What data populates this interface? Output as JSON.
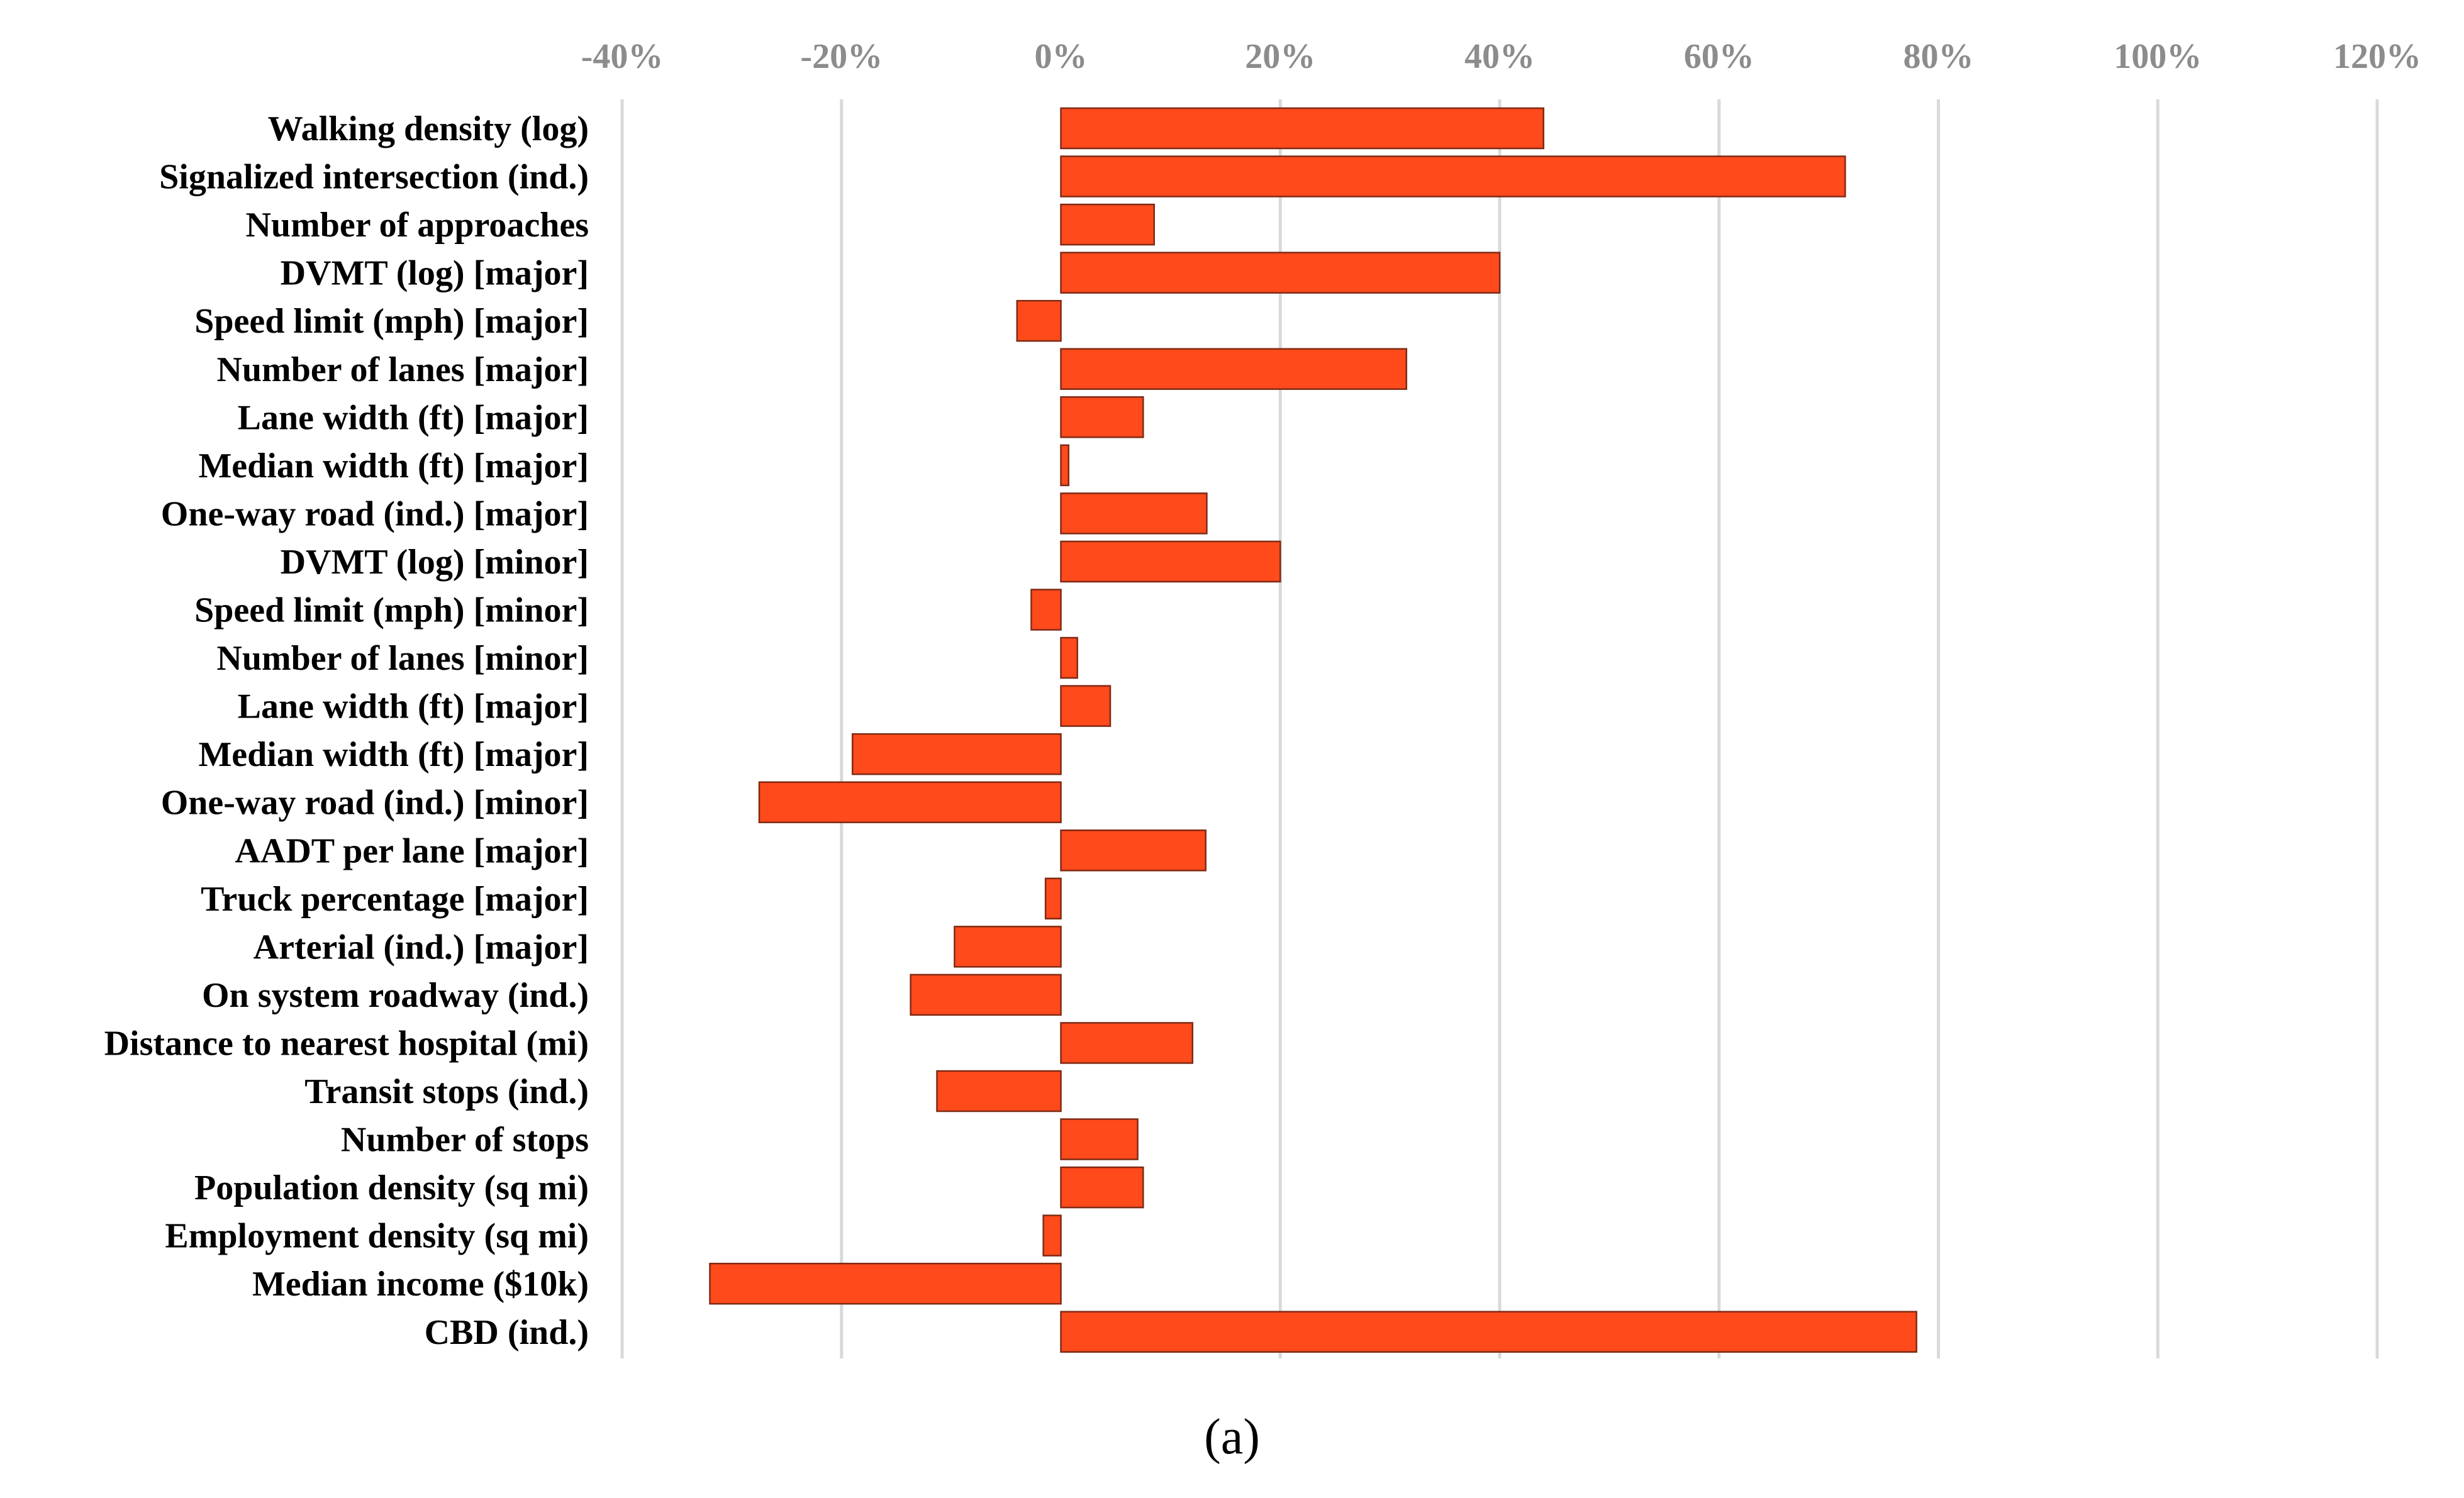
{
  "chart_data": {
    "type": "bar",
    "orientation": "horizontal",
    "title": "",
    "xlabel": "",
    "ylabel": "",
    "xlim": [
      -40,
      120
    ],
    "x_ticks": [
      -40,
      -20,
      0,
      20,
      40,
      60,
      80,
      100,
      120
    ],
    "x_tick_labels": [
      "-40%",
      "-20%",
      "0%",
      "20%",
      "40%",
      "60%",
      "80%",
      "100%",
      "120%"
    ],
    "grid": "vertical",
    "legend": "none",
    "bar_color": "#ff4a1c",
    "bar_edge_color": "#7f2a14",
    "grid_color": "#d9d9d9",
    "tick_label_color": "#8c8c8c",
    "categories": [
      "Walking density (log)",
      "Signalized intersection (ind.)",
      "Number of approaches",
      "DVMT (log) [major]",
      "Speed limit (mph) [major]",
      "Number of lanes [major]",
      "Lane width (ft) [major]",
      "Median width (ft) [major]",
      "One-way road (ind.) [major]",
      "DVMT (log) [minor]",
      "Speed limit (mph) [minor]",
      "Number of lanes [minor]",
      "Lane width (ft) [major]",
      "Median width (ft) [major]",
      "One-way road (ind.) [minor]",
      "AADT per lane [major]",
      "Truck percentage [major]",
      "Arterial (ind.) [major]",
      "On system roadway (ind.)",
      "Distance to nearest hospital (mi)",
      "Transit stops (ind.)",
      "Number of stops",
      "Population density (sq mi)",
      "Employment density (sq mi)",
      "Median income ($10k)",
      "CBD (ind.)"
    ],
    "values": [
      44,
      71.5,
      8.5,
      40,
      -4,
      31.5,
      7.5,
      0.7,
      13.3,
      20,
      -2.7,
      1.5,
      4.5,
      -19,
      -27.5,
      13.2,
      -1.4,
      -9.7,
      -13.7,
      12,
      -11.3,
      7,
      7.5,
      -1.6,
      -32,
      78
    ]
  },
  "caption": "(a)"
}
